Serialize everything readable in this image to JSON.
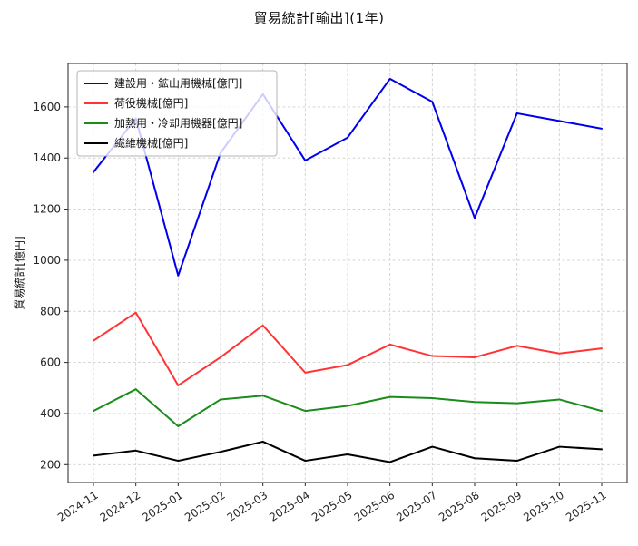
{
  "chart_data": {
    "type": "line",
    "title": "貿易統計[輸出](1年)",
    "xlabel": "",
    "ylabel": "貿易統計[億円]",
    "ylim": [
      130,
      1770
    ],
    "yticks": [
      200,
      400,
      600,
      800,
      1000,
      1200,
      1400,
      1600
    ],
    "grid": true,
    "legend_position": "upper left",
    "categories": [
      "2024-11",
      "2024-12",
      "2025-01",
      "2025-02",
      "2025-03",
      "2025-04",
      "2025-05",
      "2025-06",
      "2025-07",
      "2025-08",
      "2025-09",
      "2025-10",
      "2025-11"
    ],
    "series": [
      {
        "name": "建設用・鉱山用機械[億円]",
        "color": "#0000ee",
        "values": [
          1345,
          1555,
          940,
          1420,
          1650,
          1390,
          1480,
          1710,
          1620,
          1165,
          1575,
          1545,
          1515
        ]
      },
      {
        "name": "荷役機械[億円]",
        "color": "#ff3333",
        "values": [
          685,
          795,
          510,
          620,
          745,
          560,
          590,
          670,
          625,
          620,
          665,
          635,
          655
        ]
      },
      {
        "name": "加熱用・冷却用機器[億円]",
        "color": "#1a8c1a",
        "values": [
          410,
          495,
          350,
          455,
          470,
          410,
          430,
          465,
          460,
          445,
          440,
          455,
          410
        ]
      },
      {
        "name": "繊維機械[億円]",
        "color": "#000000",
        "values": [
          235,
          255,
          215,
          250,
          290,
          215,
          240,
          210,
          270,
          225,
          215,
          270,
          260
        ]
      }
    ]
  }
}
